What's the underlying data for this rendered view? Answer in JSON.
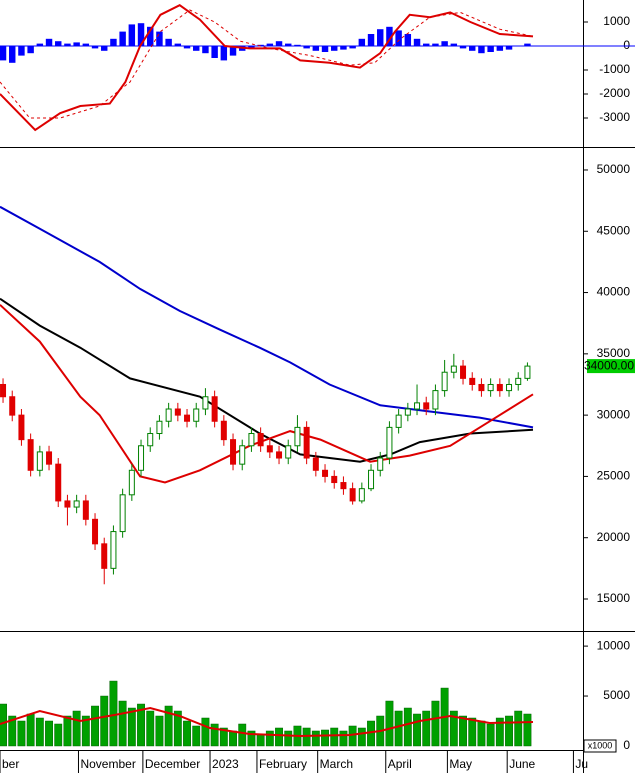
{
  "chart_data": [
    {
      "type": "macd",
      "xlim": [
        -0.33,
        63.04
      ],
      "ylim": [
        -4125,
        1917
      ],
      "yticks": [
        1000,
        0,
        -1000,
        -2000,
        -3000
      ],
      "histogram": {
        "color": "#0000ff",
        "values": [
          -600,
          -700,
          -400,
          -300,
          100,
          300,
          200,
          100,
          150,
          100,
          -100,
          -200,
          300,
          600,
          900,
          950,
          800,
          600,
          300,
          100,
          -100,
          -200,
          -300,
          -500,
          -600,
          -400,
          -200,
          -100,
          50,
          100,
          200,
          100,
          50,
          -100,
          -200,
          -250,
          -200,
          -150,
          -100,
          300,
          500,
          700,
          800,
          650,
          500,
          300,
          100,
          100,
          200,
          100,
          -100,
          -200,
          -300,
          -250,
          -200,
          -150,
          0,
          100
        ]
      },
      "lines": [
        {
          "color": "#dd0000",
          "dashed": false,
          "x": [
            -0.33,
            3.5,
            6.2,
            8.4,
            11.6,
            13.3,
            14.9,
            17.1,
            19.2,
            21.4,
            24.1,
            26.8,
            30.1,
            32.3,
            35.5,
            38.8,
            41,
            42.6,
            44.2,
            46.4,
            48.6,
            50.8,
            54,
            57.6
          ],
          "values": [
            -2000,
            -3500,
            -2800,
            -2500,
            -2400,
            -1500,
            0,
            1300,
            1700,
            1100,
            0,
            -100,
            -100,
            -600,
            -700,
            -900,
            -300,
            600,
            1300,
            1200,
            1400,
            1000,
            500,
            400
          ]
        },
        {
          "color": "#dd0000",
          "dashed": true,
          "x": [
            -0.33,
            2.9,
            6.2,
            10.5,
            13.8,
            17.1,
            20.3,
            23,
            25.8,
            29,
            33.4,
            37.7,
            40.4,
            43.2,
            46.4,
            49.7,
            54,
            57.6
          ],
          "values": [
            -1500,
            -3000,
            -3000,
            -2500,
            -1500,
            600,
            1500,
            1000,
            200,
            -100,
            -400,
            -800,
            -700,
            300,
            1200,
            1400,
            700,
            400
          ]
        }
      ]
    },
    {
      "type": "candlestick",
      "xlim": [
        -0.33,
        63.04
      ],
      "ylim": [
        12470,
        51630
      ],
      "yticks": [
        15000,
        20000,
        25000,
        30000,
        35000,
        40000,
        45000,
        50000
      ],
      "up_color": "#008000",
      "down_color": "#e00000",
      "ohlc": [
        [
          32500,
          33000,
          31000,
          31500
        ],
        [
          31500,
          32000,
          29500,
          30000
        ],
        [
          30000,
          30500,
          27500,
          28000
        ],
        [
          28000,
          28500,
          25000,
          25500
        ],
        [
          25500,
          27500,
          25000,
          27000
        ],
        [
          27000,
          27500,
          25500,
          26000
        ],
        [
          26000,
          26500,
          22500,
          23000
        ],
        [
          23000,
          23500,
          21000,
          22500
        ],
        [
          22500,
          23500,
          22000,
          23000
        ],
        [
          23000,
          23500,
          21000,
          21500
        ],
        [
          21500,
          22000,
          19000,
          19500
        ],
        [
          19500,
          20000,
          16200,
          17500
        ],
        [
          17500,
          21000,
          17000,
          20500
        ],
        [
          20500,
          24000,
          20000,
          23500
        ],
        [
          23500,
          26000,
          23000,
          25500
        ],
        [
          25500,
          28000,
          25000,
          27500
        ],
        [
          27500,
          29000,
          27000,
          28500
        ],
        [
          28500,
          30000,
          28000,
          29500
        ],
        [
          29500,
          31000,
          29000,
          30500
        ],
        [
          30500,
          31000,
          29500,
          30000
        ],
        [
          30000,
          30500,
          29000,
          29500
        ],
        [
          29500,
          31000,
          29000,
          30500
        ],
        [
          30500,
          32200,
          30000,
          31500
        ],
        [
          31500,
          32000,
          29000,
          29500
        ],
        [
          29500,
          30000,
          27500,
          28000
        ],
        [
          28000,
          28500,
          25500,
          26000
        ],
        [
          26000,
          28000,
          25500,
          27500
        ],
        [
          27500,
          29000,
          27000,
          28500
        ],
        [
          28500,
          29000,
          27000,
          27500
        ],
        [
          27500,
          28000,
          26500,
          27000
        ],
        [
          27000,
          27500,
          26000,
          26500
        ],
        [
          26500,
          28000,
          26000,
          27500
        ],
        [
          27500,
          30000,
          27000,
          29000
        ],
        [
          29000,
          29500,
          26000,
          26500
        ],
        [
          26500,
          27000,
          25000,
          25500
        ],
        [
          25500,
          26000,
          24500,
          25000
        ],
        [
          25000,
          25500,
          24000,
          24500
        ],
        [
          24500,
          25000,
          23500,
          24000
        ],
        [
          24000,
          24500,
          22700,
          23000
        ],
        [
          23000,
          24500,
          22800,
          24000
        ],
        [
          24000,
          26000,
          23800,
          25500
        ],
        [
          25500,
          27000,
          25000,
          26500
        ],
        [
          26500,
          29500,
          26000,
          29000
        ],
        [
          29000,
          30500,
          28500,
          30000
        ],
        [
          30000,
          31000,
          29500,
          30500
        ],
        [
          30500,
          32500,
          30000,
          31000
        ],
        [
          31000,
          31500,
          30000,
          30500
        ],
        [
          30500,
          32500,
          30000,
          32000
        ],
        [
          32000,
          34500,
          31500,
          33500
        ],
        [
          33500,
          35000,
          33000,
          34000
        ],
        [
          34000,
          34500,
          32500,
          33000
        ],
        [
          33000,
          33500,
          32000,
          32500
        ],
        [
          32500,
          33000,
          31500,
          32000
        ],
        [
          32000,
          33000,
          31500,
          32500
        ],
        [
          32500,
          33000,
          31500,
          32000
        ],
        [
          32000,
          33000,
          31500,
          32500
        ],
        [
          32500,
          33500,
          32000,
          33000
        ],
        [
          33000,
          34300,
          32800,
          34000
        ]
      ],
      "lines": [
        {
          "color": "#0000cc",
          "x": [
            -0.33,
            4,
            10.5,
            14.9,
            19.2,
            23.5,
            27.9,
            31.2,
            35.5,
            41,
            46.4,
            51.8,
            57.6
          ],
          "values": [
            47000,
            45200,
            42500,
            40300,
            38500,
            37000,
            35500,
            34300,
            32500,
            30800,
            30300,
            29800,
            29000
          ]
        },
        {
          "color": "#000000",
          "x": [
            -0.33,
            4,
            8.4,
            13.8,
            21.4,
            27.9,
            32.3,
            38.8,
            42.1,
            45.3,
            50.8,
            57.6
          ],
          "values": [
            39500,
            37300,
            35500,
            33000,
            31500,
            28500,
            26800,
            26200,
            26800,
            27800,
            28500,
            28800
          ]
        },
        {
          "color": "#dd0000",
          "x": [
            -0.33,
            4,
            8.4,
            10.5,
            14.9,
            17.6,
            21.4,
            26.8,
            31.2,
            34.5,
            39.9,
            44.2,
            48.6,
            52.9,
            57.6
          ],
          "values": [
            39000,
            36000,
            31500,
            30000,
            25000,
            24500,
            25500,
            27500,
            28700,
            28000,
            26200,
            26700,
            27500,
            29500,
            31700
          ]
        }
      ],
      "last_price": {
        "value": 34000,
        "label": "34000.00"
      },
      "last_price_color": "#00cc00"
    },
    {
      "type": "bar",
      "xlim": [
        -0.33,
        63.04
      ],
      "ylim": [
        -404,
        11313
      ],
      "yticks": [
        0,
        5000,
        10000
      ],
      "unit_label": "x1000",
      "color": "#00a000",
      "values": [
        4200,
        3000,
        2500,
        3200,
        2800,
        2500,
        2200,
        3000,
        3500,
        3000,
        4000,
        5000,
        6500,
        4500,
        3800,
        4200,
        3500,
        3000,
        4000,
        3500,
        2500,
        2000,
        2800,
        2200,
        1800,
        1500,
        2200,
        1500,
        1200,
        1500,
        1800,
        1500,
        2000,
        1800,
        1500,
        1600,
        1800,
        1500,
        2000,
        1800,
        2500,
        3000,
        4500,
        3500,
        3800,
        3200,
        3500,
        4500,
        5800,
        3500,
        3000,
        2800,
        2500,
        2200,
        2800,
        3000,
        3500,
        3200
      ],
      "lines": [
        {
          "color": "#dd0000",
          "x": [
            -0.33,
            4,
            8.4,
            12.7,
            16,
            19.2,
            22.5,
            26.8,
            32.3,
            37.7,
            41,
            45.3,
            48.6,
            52.9,
            57.6
          ],
          "values": [
            2200,
            3500,
            2500,
            3200,
            3800,
            3000,
            1800,
            1200,
            1000,
            1100,
            1500,
            2500,
            3000,
            2300,
            2400
          ]
        }
      ],
      "xticks": [
        {
          "value": -0.33,
          "label": "ber"
        },
        {
          "value": 8.2,
          "label": "November"
        },
        {
          "value": 15.2,
          "label": "December"
        },
        {
          "value": 22.5,
          "label": "2023"
        },
        {
          "value": 27.6,
          "label": "February"
        },
        {
          "value": 34.2,
          "label": "March"
        },
        {
          "value": 41.6,
          "label": "April"
        },
        {
          "value": 48.3,
          "label": "May"
        },
        {
          "value": 54.8,
          "label": "June"
        },
        {
          "value": 62,
          "label": "Ju"
        }
      ]
    }
  ]
}
